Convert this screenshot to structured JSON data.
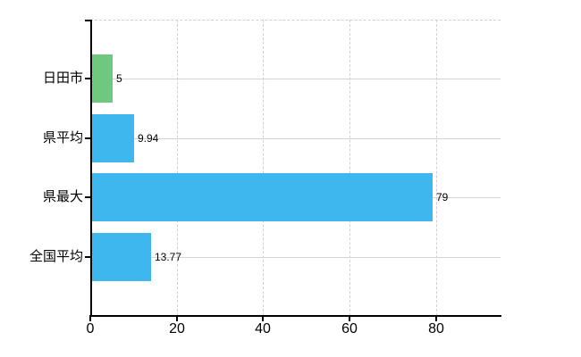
{
  "chart_data": {
    "type": "bar",
    "orientation": "horizontal",
    "title": "",
    "xlabel": "",
    "ylabel": "",
    "categories": [
      "日田市",
      "県平均",
      "県最大",
      "全国平均"
    ],
    "values": [
      5,
      9.94,
      79,
      13.77
    ],
    "value_labels": [
      "5",
      "9.94",
      "79",
      "13.77"
    ],
    "bar_colors": [
      "#70c77e",
      "#3eb7ee",
      "#3eb7ee",
      "#3eb7ee"
    ],
    "x_ticks": [
      0,
      20,
      40,
      60,
      80
    ],
    "x_tick_labels": [
      "0",
      "20",
      "40",
      "60",
      "80"
    ],
    "xlim": [
      0,
      95
    ],
    "grid": true,
    "legend": "none",
    "background": "#ffffff"
  },
  "colors": {
    "axis": "#000000",
    "vertical_grid": "#d3ced6",
    "horizontal_grid": "#d6d6d0",
    "text": "#000000",
    "green_bar": "#70c77e",
    "blue_bar": "#3eb7ee"
  }
}
